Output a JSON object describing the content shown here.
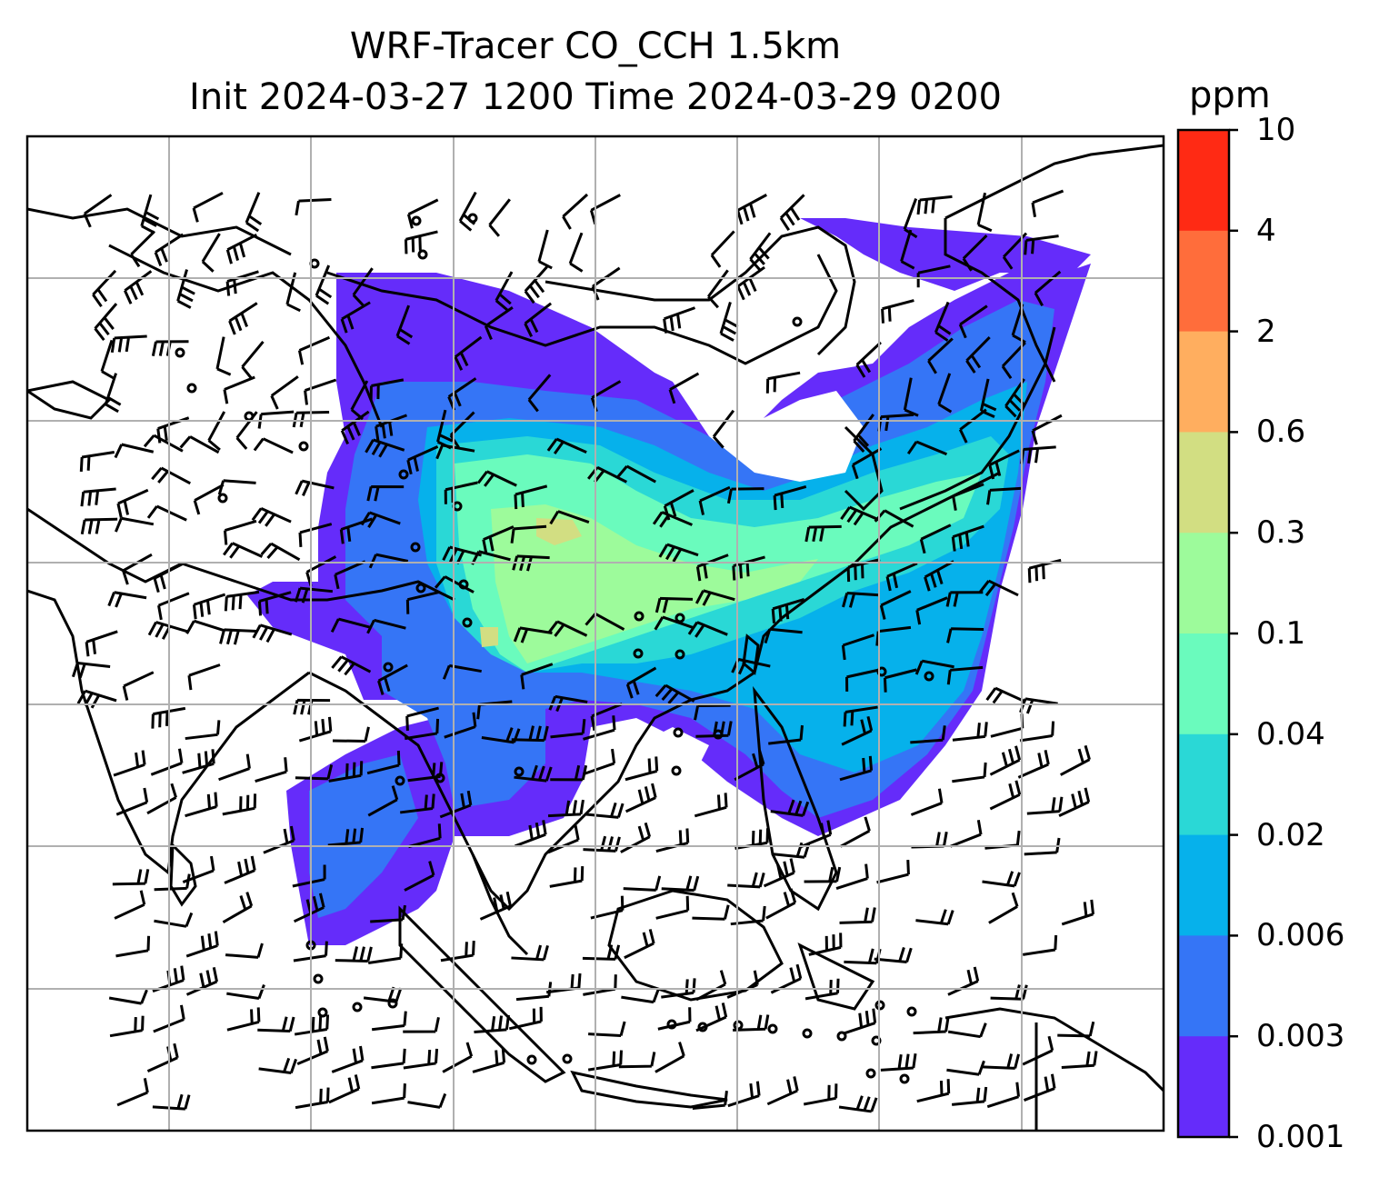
{
  "title": {
    "line1": "WRF-Tracer CO_CCH 1.5km",
    "line2": "Init 2024-03-27 1200 Time 2024-03-29 0200"
  },
  "colorbar": {
    "unit": "ppm",
    "ticks": [
      "10",
      "4",
      "2",
      "0.6",
      "0.3",
      "0.1",
      "0.04",
      "0.02",
      "0.006",
      "0.003",
      "0.001"
    ],
    "colors": [
      "#ff2a14",
      "#ff6d3b",
      "#ffae5f",
      "#d2de82",
      "#9dfb9b",
      "#6afbbd",
      "#2ad8d6",
      "#06b1eb",
      "#3575f6",
      "#652cfa"
    ]
  },
  "map": {
    "concentration_field": "CO_CCH tracer",
    "height": "1.5km",
    "grid": "on",
    "wind_barbs": "on"
  }
}
